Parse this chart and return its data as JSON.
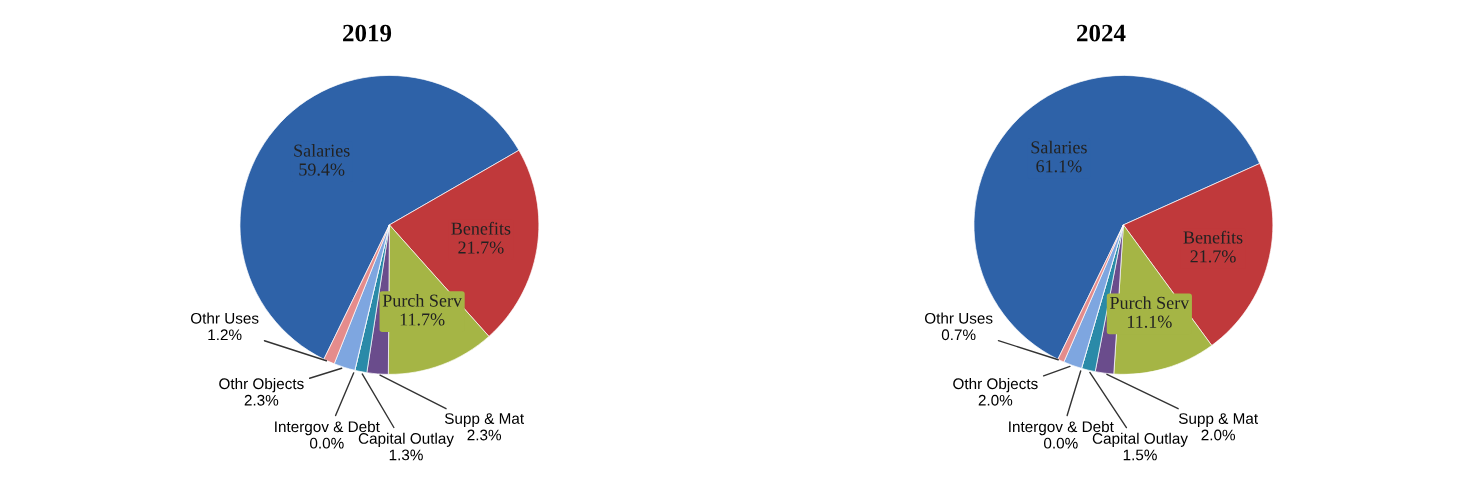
{
  "chart_data": [
    {
      "type": "pie",
      "title": "2019",
      "categories": [
        "Salaries",
        "Benefits",
        "Purch Serv",
        "Supp & Mat",
        "Capital Outlay",
        "Intergov & Debt",
        "Othr Objects",
        "Othr Uses"
      ],
      "values": [
        59.4,
        21.7,
        11.7,
        2.3,
        1.3,
        0.0,
        2.3,
        1.2
      ],
      "value_labels": [
        "59.4%",
        "21.7%",
        "11.7%",
        "2.3%",
        "1.3%",
        "0.0%",
        "2.3%",
        "1.2%"
      ],
      "colors": [
        "#2e62a8",
        "#c0393b",
        "#a5b545",
        "#6a4c8c",
        "#2a8aa8",
        "#e07b39",
        "#7ea6e0",
        "#e58c8c"
      ]
    },
    {
      "type": "pie",
      "title": "2024",
      "categories": [
        "Salaries",
        "Benefits",
        "Purch Serv",
        "Supp & Mat",
        "Capital Outlay",
        "Intergov & Debt",
        "Othr Objects",
        "Othr Uses"
      ],
      "values": [
        61.1,
        21.7,
        11.1,
        2.0,
        1.5,
        0.0,
        2.0,
        0.7
      ],
      "value_labels": [
        "61.1%",
        "21.7%",
        "11.1%",
        "2.0%",
        "1.5%",
        "0.0%",
        "2.0%",
        "0.7%"
      ],
      "colors": [
        "#2e62a8",
        "#c0393b",
        "#a5b545",
        "#6a4c8c",
        "#2a8aa8",
        "#e07b39",
        "#7ea6e0",
        "#e58c8c"
      ]
    }
  ]
}
